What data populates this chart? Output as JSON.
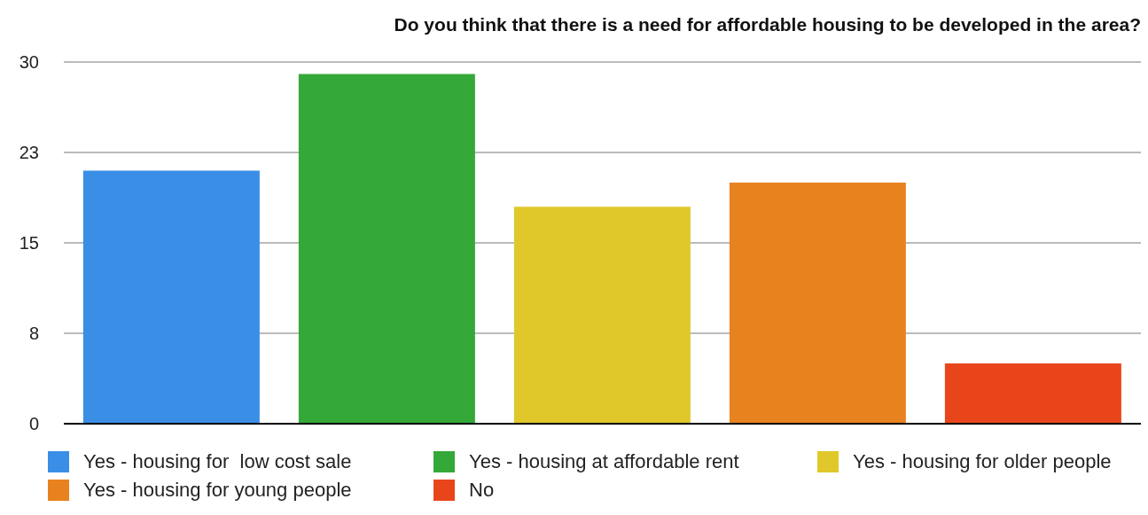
{
  "chart_data": {
    "type": "bar",
    "title": "Do you think that there is a need for affordable housing to be developed in the area?",
    "categories": [
      null,
      null,
      null,
      null,
      null
    ],
    "series": [
      {
        "name": "Yes - housing for  low cost sale",
        "color": "#3a8ee6",
        "values": [
          21,
          null,
          null,
          null,
          null
        ]
      },
      {
        "name": "Yes - housing at affordable rent",
        "color": "#34a838",
        "values": [
          null,
          29,
          null,
          null,
          null
        ]
      },
      {
        "name": "Yes - housing for older people",
        "color": "#e0c82a",
        "values": [
          null,
          null,
          18,
          null,
          null
        ]
      },
      {
        "name": "Yes - housing for young people",
        "color": "#e8821e",
        "values": [
          null,
          null,
          null,
          20,
          null
        ]
      },
      {
        "name": "No",
        "color": "#e8461a",
        "values": [
          null,
          null,
          null,
          null,
          5
        ]
      }
    ],
    "ylim": [
      0,
      30
    ],
    "yticks": [
      0,
      {
        "value": 7.5,
        "label": "8"
      },
      15,
      {
        "value": 22.5,
        "label": "23"
      },
      30
    ],
    "grid": "y",
    "legend": "bottom"
  }
}
